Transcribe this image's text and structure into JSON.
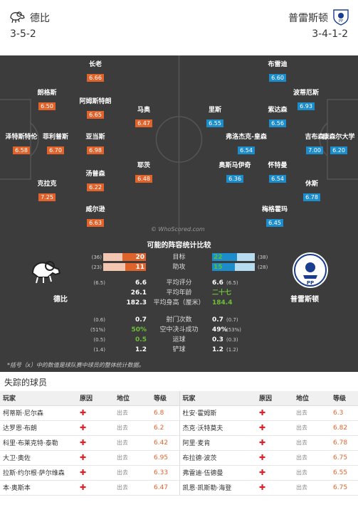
{
  "header": {
    "home": {
      "name": "德比",
      "formation": "3-5-2"
    },
    "away": {
      "name": "普雷斯顿",
      "formation": "3-4-1-2"
    }
  },
  "colors": {
    "home": "#e0632c",
    "away": "#1d8ccb",
    "pitch": "#3c3c3c"
  },
  "pitch": {
    "watermark": "© WhoScored.com",
    "home_players": [
      {
        "name": "长老",
        "rating": "6.66"
      },
      {
        "name": "朗格斯",
        "rating": "6.50"
      },
      {
        "name": "阿姆斯特朗",
        "rating": "6.65"
      },
      {
        "name": "马奥",
        "rating": "6.47"
      },
      {
        "name": "泽特斯特伦",
        "rating": "6.58"
      },
      {
        "name": "菲利普斯",
        "rating": "6.70"
      },
      {
        "name": "亚当斯",
        "rating": "6.98"
      },
      {
        "name": "耶茨",
        "rating": "6.48"
      },
      {
        "name": "汤普森",
        "rating": "6.22"
      },
      {
        "name": "克拉克",
        "rating": "7.25"
      },
      {
        "name": "威尔逊",
        "rating": "6.63"
      }
    ],
    "away_players": [
      {
        "name": "布雷迪",
        "rating": "6.60"
      },
      {
        "name": "波蒂厄斯",
        "rating": "6.93"
      },
      {
        "name": "里斯",
        "rating": "6.55"
      },
      {
        "name": "紫达森",
        "rating": "6.56"
      },
      {
        "name": "弗洛杰克-皇森",
        "rating": "6.54"
      },
      {
        "name": "吉布森",
        "rating": "7.00"
      },
      {
        "name": "康森尔大学",
        "rating": "6.20"
      },
      {
        "name": "奥斯马伊奇",
        "rating": "6.36"
      },
      {
        "name": "怀特曼",
        "rating": "6.54"
      },
      {
        "name": "休斯",
        "rating": "6.78"
      },
      {
        "name": "梅格霍玛",
        "rating": "6.45"
      }
    ]
  },
  "compare": {
    "title": "可能的阵容统计比较",
    "home_name": "德比",
    "away_name": "普雷斯顿",
    "bars": [
      {
        "label": "目标",
        "home": "20",
        "home_sub": "(36)",
        "away": "22",
        "away_sub": "(38)",
        "home_frac": 0.55,
        "away_frac": 0.58
      },
      {
        "label": "助攻",
        "home": "11",
        "home_sub": "(23)",
        "away": "15",
        "away_sub": "(28)",
        "home_frac": 0.48,
        "away_frac": 0.54
      }
    ],
    "rows": [
      {
        "label": "平均评分",
        "home": "6.6",
        "home_sub": "(6.5)",
        "away": "6.6",
        "away_sub": "(6.5)"
      },
      {
        "label": "平均年龄",
        "home": "26.1",
        "home_sub": "",
        "away": "二十七",
        "away_sub": ""
      },
      {
        "label": "平均身高（厘米）",
        "home": "182.3",
        "home_sub": "",
        "away": "184.4",
        "away_sub": ""
      },
      {
        "label": "射门次数",
        "home": "0.7",
        "home_sub": "(0.6)",
        "away": "0.7",
        "away_sub": "(0.7)"
      },
      {
        "label": "空中决斗成功",
        "home": "50%",
        "home_sub": "(51%)",
        "away": "49%",
        "away_sub": "(53%)"
      },
      {
        "label": "运球",
        "home": "0.5",
        "home_sub": "(0.5)",
        "away": "0.3",
        "away_sub": "(0.3)"
      },
      {
        "label": "铲球",
        "home": "1.2",
        "home_sub": "(1.4)",
        "away": "1.2",
        "away_sub": "(1.2)"
      }
    ],
    "note": "*括号（x）中的数值是球队赛中球员的整体统计数据。"
  },
  "missing": {
    "title": "失踪的球员",
    "headers": {
      "player": "玩家",
      "reason": "原因",
      "status": "地位",
      "rating": "等级"
    },
    "home": [
      {
        "player": "柯蒂斯·尼尔森",
        "status": "出去",
        "rating": "6.8"
      },
      {
        "player": "达罗恩·布朗",
        "status": "出去",
        "rating": "6.2"
      },
      {
        "player": "科里·布莱克特·泰勒",
        "status": "出去",
        "rating": "6.42"
      },
      {
        "player": "大卫·奥佐",
        "status": "出去",
        "rating": "6.95"
      },
      {
        "player": "拉斯·约尔根·萨尔维森",
        "status": "出去",
        "rating": "6.33"
      },
      {
        "player": "本·奥斯本",
        "status": "出去",
        "rating": "6.47"
      }
    ],
    "away": [
      {
        "player": "杜安·霍姆斯",
        "status": "出去",
        "rating": "6.3"
      },
      {
        "player": "杰克·沃特莫夫",
        "status": "出去",
        "rating": "6.82"
      },
      {
        "player": "阿里·麦肯",
        "status": "出去",
        "rating": "6.78"
      },
      {
        "player": "布拉德·波茨",
        "status": "出去",
        "rating": "6.75"
      },
      {
        "player": "弗雷迪·伍德曼",
        "status": "出去",
        "rating": "6.55"
      },
      {
        "player": "凯恩·凯斯勒·海登",
        "status": "出去",
        "rating": "6.75"
      }
    ]
  }
}
